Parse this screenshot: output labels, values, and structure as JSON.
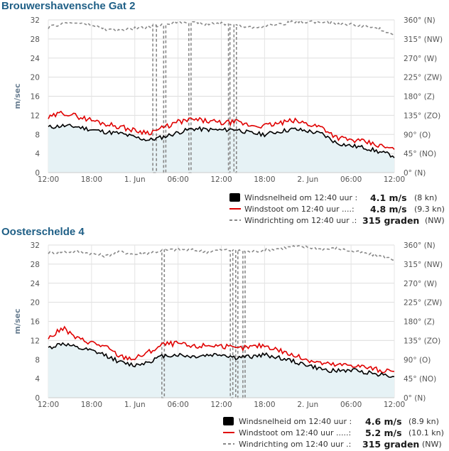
{
  "chart_data": [
    {
      "type": "line",
      "title": "Brouwershavensche Gat 2",
      "ylabel": "m/sec",
      "ylim": [
        0,
        32
      ],
      "y_ticks": [
        "0",
        "4",
        "8",
        "12",
        "16",
        "20",
        "24",
        "28",
        "32"
      ],
      "y2lim": [
        0,
        360
      ],
      "y2_ticks": [
        "0° (N)",
        "45° (NO)",
        "90° (O)",
        "135° (ZO)",
        "180° (Z)",
        "225° (ZW)",
        "270° (W)",
        "315° (NW)",
        "360° (N)"
      ],
      "x_ticks": [
        "12:00",
        "18:00",
        "1. Jun",
        "06:00",
        "12:00",
        "18:00",
        "2. Jun",
        "06:00",
        "12:00"
      ],
      "grid": true,
      "series": [
        {
          "name": "Windsnelheid",
          "axis": "left",
          "color": "#000000",
          "hours": [
            0,
            2,
            4,
            6,
            8,
            10,
            12,
            14,
            16,
            18,
            20,
            22,
            24,
            26,
            28,
            30,
            32,
            34,
            36,
            38,
            40,
            42,
            44,
            46,
            48
          ],
          "values": [
            9.5,
            9.8,
            9.6,
            9.0,
            8.5,
            8.2,
            7.4,
            6.8,
            7.5,
            8.4,
            9.2,
            9.0,
            8.9,
            9.1,
            8.3,
            8.0,
            8.6,
            9.1,
            8.7,
            8.1,
            6.2,
            5.6,
            5.2,
            4.3,
            3.5
          ]
        },
        {
          "name": "Windstoot",
          "axis": "left",
          "color": "#e00000",
          "hours": [
            0,
            2,
            4,
            6,
            8,
            10,
            12,
            14,
            16,
            18,
            20,
            22,
            24,
            26,
            28,
            30,
            32,
            34,
            36,
            38,
            40,
            42,
            44,
            46,
            48
          ],
          "values": [
            11.4,
            12.6,
            11.8,
            11.0,
            10.2,
            9.6,
            8.8,
            8.4,
            9.4,
            10.6,
            11.1,
            10.8,
            10.4,
            10.6,
            9.9,
            9.8,
            10.3,
            10.9,
            10.2,
            9.5,
            7.4,
            6.8,
            6.4,
            5.6,
            4.8
          ]
        },
        {
          "name": "Windrichting",
          "axis": "right",
          "color": "#888888",
          "hours": [
            0,
            2,
            4,
            6,
            8,
            10,
            12,
            14,
            16,
            18,
            20,
            22,
            24,
            26,
            28,
            30,
            32,
            34,
            36,
            38,
            40,
            42,
            44,
            46,
            48
          ],
          "values": [
            342,
            352,
            353,
            348,
            338,
            335,
            340,
            343,
            348,
            356,
            354,
            350,
            352,
            348,
            342,
            345,
            350,
            355,
            356,
            354,
            351,
            349,
            345,
            338,
            326
          ]
        }
      ],
      "legend": [
        {
          "label": "Windsnelheid om 12:40 uur :",
          "value": "4.1 m/s",
          "unit": "(8 kn)",
          "symbol": "box",
          "color": "#000000"
        },
        {
          "label": "Windstoot om 12:40 uur ....:",
          "value": "4.8 m/s",
          "unit": "(9.3 kn)",
          "symbol": "line",
          "color": "#e00000"
        },
        {
          "label": "Windrichting om 12:40 uur .:",
          "value": "315 graden",
          "unit": "(NW)",
          "symbol": "dash",
          "color": "#888888"
        }
      ]
    },
    {
      "type": "line",
      "title": "Oosterschelde 4",
      "ylabel": "m/sec",
      "ylim": [
        0,
        32
      ],
      "y_ticks": [
        "0",
        "4",
        "8",
        "12",
        "16",
        "20",
        "24",
        "28",
        "32"
      ],
      "y2lim": [
        0,
        360
      ],
      "y2_ticks": [
        "0° (N)",
        "45° (NO)",
        "90° (O)",
        "135° (ZO)",
        "180° (Z)",
        "225° (ZW)",
        "270° (W)",
        "315° (NW)",
        "360° (N)"
      ],
      "x_ticks": [
        "12:00",
        "18:00",
        "1. Jun",
        "06:00",
        "12:00",
        "18:00",
        "2. Jun",
        "06:00",
        "12:00"
      ],
      "grid": true,
      "series": [
        {
          "name": "Windsnelheid",
          "axis": "left",
          "color": "#000000",
          "hours": [
            0,
            2,
            4,
            6,
            8,
            10,
            12,
            14,
            16,
            18,
            20,
            22,
            24,
            26,
            28,
            30,
            32,
            34,
            36,
            38,
            40,
            42,
            44,
            46,
            48
          ],
          "values": [
            10.4,
            11.4,
            10.4,
            9.8,
            8.9,
            7.4,
            6.8,
            7.6,
            8.8,
            9.0,
            8.6,
            8.9,
            9.1,
            8.4,
            8.6,
            9.0,
            8.4,
            7.6,
            6.8,
            5.9,
            5.6,
            5.8,
            5.4,
            4.9,
            4.6
          ]
        },
        {
          "name": "Windstoot",
          "axis": "left",
          "color": "#e00000",
          "hours": [
            0,
            2,
            4,
            6,
            8,
            10,
            12,
            14,
            16,
            18,
            20,
            22,
            24,
            26,
            28,
            30,
            32,
            34,
            36,
            38,
            40,
            42,
            44,
            46,
            48
          ],
          "values": [
            12.4,
            14.6,
            12.4,
            11.6,
            10.6,
            8.6,
            8.2,
            9.6,
            11.2,
            11.4,
            10.6,
            11.0,
            10.9,
            10.2,
            10.6,
            11.0,
            10.0,
            8.8,
            8.0,
            7.2,
            6.8,
            6.9,
            6.4,
            5.8,
            5.2
          ]
        },
        {
          "name": "Windrichting",
          "axis": "right",
          "color": "#888888",
          "hours": [
            0,
            2,
            4,
            6,
            8,
            10,
            12,
            14,
            16,
            18,
            20,
            22,
            24,
            26,
            28,
            30,
            32,
            34,
            36,
            38,
            40,
            42,
            44,
            46,
            48
          ],
          "values": [
            342,
            344,
            345,
            340,
            334,
            344,
            338,
            342,
            347,
            350,
            348,
            344,
            349,
            347,
            344,
            348,
            352,
            356,
            355,
            350,
            352,
            346,
            340,
            334,
            326
          ]
        }
      ],
      "legend": [
        {
          "label": "Windsnelheid om 12:40 uur :",
          "value": "4.6 m/s",
          "unit": "(8.9 kn)",
          "symbol": "box",
          "color": "#000000"
        },
        {
          "label": "Windstoot om 12:40 uur .....:",
          "value": "5.2 m/s",
          "unit": "(10.1 kn)",
          "symbol": "line",
          "color": "#e00000"
        },
        {
          "label": "Windrichting om 12:40 uur .:",
          "value": "315 graden",
          "unit": "(NW)",
          "symbol": "dash",
          "color": "#888888"
        }
      ]
    }
  ]
}
